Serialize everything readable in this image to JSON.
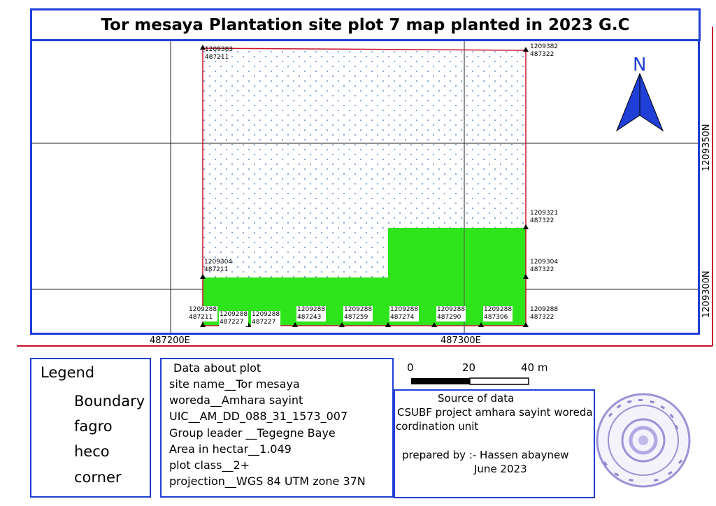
{
  "title": "Tor mesaya Plantation site plot 7 map planted in 2023 G.C",
  "north_label": "N",
  "grid_labels": {
    "x1": "487200E",
    "x2": "487300E",
    "y1": "1209350N",
    "y2": "1209300N"
  },
  "corners": [
    {
      "n": "1209383",
      "e": "487211"
    },
    {
      "n": "1209382",
      "e": "487322"
    },
    {
      "n": "1209321",
      "e": "487322"
    },
    {
      "n": "1209304",
      "e": "487211"
    },
    {
      "n": "1209304",
      "e": "487322"
    },
    {
      "n": "1209288",
      "e": "487211"
    },
    {
      "n": "1209288",
      "e": "487227"
    },
    {
      "n": "1209288",
      "e": "487227"
    },
    {
      "n": "1209288",
      "e": "487243"
    },
    {
      "n": "1209288",
      "e": "487259"
    },
    {
      "n": "1209288",
      "e": "487274"
    },
    {
      "n": "1209288",
      "e": "487290"
    },
    {
      "n": "1209288",
      "e": "487306"
    },
    {
      "n": "1209288",
      "e": "487322"
    }
  ],
  "legend": {
    "title": "Legend",
    "items": [
      {
        "label": "Boundary",
        "color": "#c8102e"
      },
      {
        "label": "fagro",
        "color": "#5f8fd0"
      },
      {
        "label": "heco",
        "color": "#2ee41a"
      },
      {
        "label": "corner",
        "color": "#000000"
      }
    ]
  },
  "plot_data": {
    "header": "Data about plot",
    "lines": [
      "site name__Tor mesaya",
      "woreda__Amhara sayint",
      "UIC__AM_DD_088_31_1573_007",
      "Group leader __Tegegne Baye",
      "Area in hectar__1.049",
      "plot class__2+",
      "projection__WGS 84 UTM zone 37N"
    ]
  },
  "scale_bar": {
    "labels": [
      "0",
      "20",
      "40 m"
    ]
  },
  "source": {
    "header": "Source of data",
    "line1": "CSUBF project amhara sayint woreda",
    "line2": "cordination unit",
    "prepared": "prepared by :- Hassen abaynew",
    "date": "June 2023"
  },
  "colors": {
    "frame": "#1f3fd6",
    "boundary": "#c8102e",
    "heco": "#2ee41a",
    "fagro_dot": "#5f8fd0",
    "stamp": "#8a7fd0"
  }
}
